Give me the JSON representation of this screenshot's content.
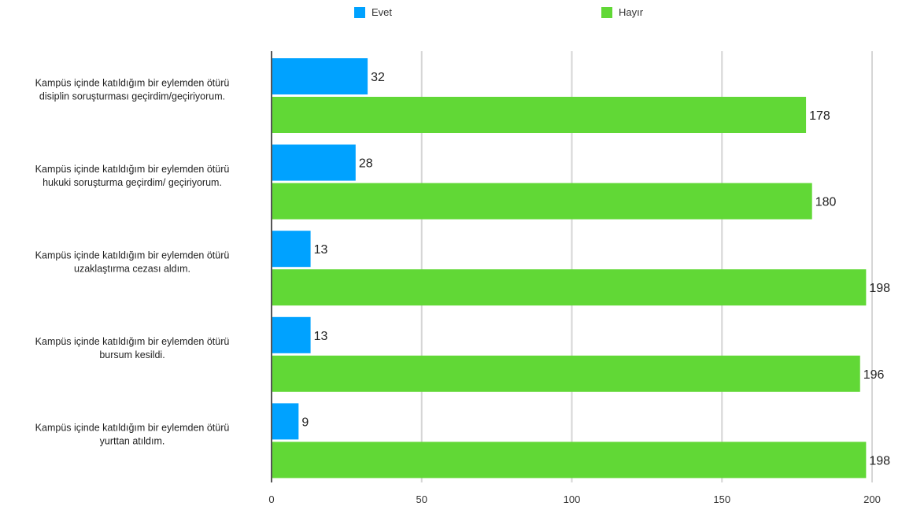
{
  "chart_data": {
    "type": "bar",
    "orientation": "horizontal",
    "categories": [
      "Kampüs içinde katıldığım bir eylemden ötürü disiplin soruşturması geçirdim/geçiriyorum.",
      "Kampüs içinde katıldığım bir eylemden ötürü hukuki soruşturma geçirdim/ geçiriyorum.",
      "Kampüs içinde katıldığım bir eylemden ötürü uzaklaştırma cezası aldım.",
      "Kampüs içinde katıldığım bir eylemden ötürü bursum kesildi.",
      "Kampüs içinde katıldığım bir eylemden ötürü yurttan atıldım."
    ],
    "category_lines": [
      [
        "Kampüs içinde katıldığım bir eylemden ötürü",
        "disiplin soruşturması geçirdim/geçiriyorum."
      ],
      [
        "Kampüs içinde katıldığım bir eylemden ötürü",
        "hukuki soruşturma geçirdim/ geçiriyorum."
      ],
      [
        "Kampüs içinde katıldığım bir eylemden ötürü",
        "uzaklaştırma cezası aldım."
      ],
      [
        "Kampüs içinde katıldığım bir eylemden ötürü",
        "bursum kesildi."
      ],
      [
        "Kampüs içinde katıldığım bir eylemden ötürü",
        "yurttan atıldım."
      ]
    ],
    "series": [
      {
        "name": "Evet",
        "color": "#00a2ff",
        "values": [
          32,
          28,
          13,
          13,
          9
        ]
      },
      {
        "name": "Hayır",
        "color": "#61d836",
        "values": [
          178,
          180,
          198,
          196,
          198
        ]
      }
    ],
    "xlim": [
      0,
      200
    ],
    "xticks": [
      "0",
      "50",
      "100",
      "150",
      "200"
    ],
    "xtick_values": [
      0,
      50,
      100,
      150,
      200
    ],
    "grid": true,
    "legend_position": "top-center",
    "data_labels": true
  }
}
